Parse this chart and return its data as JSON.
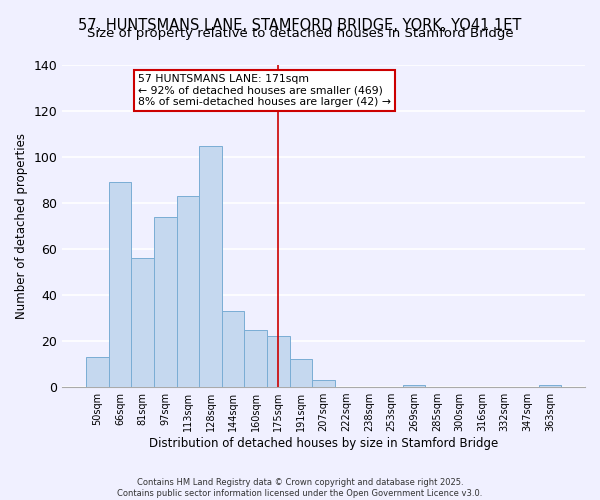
{
  "title": "57, HUNTSMANS LANE, STAMFORD BRIDGE, YORK, YO41 1ET",
  "subtitle": "Size of property relative to detached houses in Stamford Bridge",
  "xlabel": "Distribution of detached houses by size in Stamford Bridge",
  "ylabel": "Number of detached properties",
  "bin_labels": [
    "50sqm",
    "66sqm",
    "81sqm",
    "97sqm",
    "113sqm",
    "128sqm",
    "144sqm",
    "160sqm",
    "175sqm",
    "191sqm",
    "207sqm",
    "222sqm",
    "238sqm",
    "253sqm",
    "269sqm",
    "285sqm",
    "300sqm",
    "316sqm",
    "332sqm",
    "347sqm",
    "363sqm"
  ],
  "bar_heights": [
    13,
    89,
    56,
    74,
    83,
    105,
    33,
    25,
    22,
    12,
    3,
    0,
    0,
    0,
    1,
    0,
    0,
    0,
    0,
    0,
    1
  ],
  "bar_color": "#c5d8ef",
  "bar_edge_color": "#7aadd4",
  "vline_x_index": 8,
  "vline_color": "#cc0000",
  "annotation_line1": "57 HUNTSMANS LANE: 171sqm",
  "annotation_line2": "← 92% of detached houses are smaller (469)",
  "annotation_line3": "8% of semi-detached houses are larger (42) →",
  "annotation_box_color": "#ffffff",
  "annotation_border_color": "#cc0000",
  "ylim": [
    0,
    140
  ],
  "yticks": [
    0,
    20,
    40,
    60,
    80,
    100,
    120,
    140
  ],
  "background_color": "#f0f0ff",
  "grid_color": "#ffffff",
  "title_fontsize": 10.5,
  "subtitle_fontsize": 9.5,
  "footer_line1": "Contains HM Land Registry data © Crown copyright and database right 2025.",
  "footer_line2": "Contains public sector information licensed under the Open Government Licence v3.0."
}
